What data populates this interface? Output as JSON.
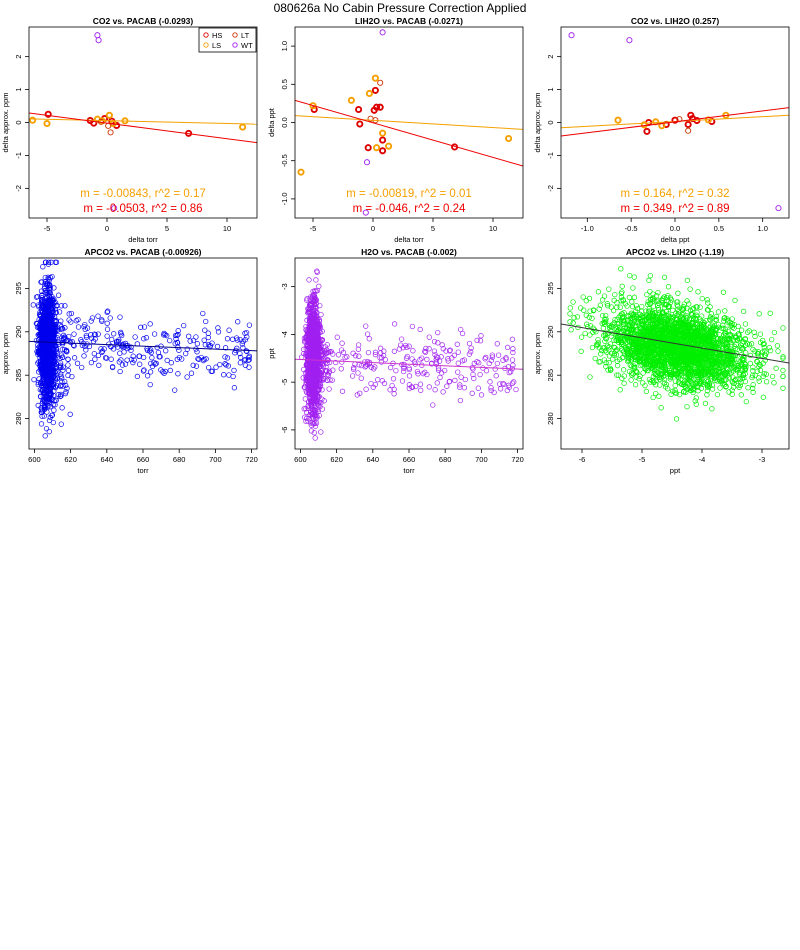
{
  "page_title": "080626a   No Cabin Pressure Correction Applied",
  "colors": {
    "HS": "#dd0000",
    "LS": "#f5a000",
    "LT": "#cc3300",
    "WT": "#a020f0",
    "blue": "#0000ee",
    "purple": "#a020f0",
    "green": "#00ee00",
    "fit_red": "#ee0000",
    "fit_orange": "#f5a000",
    "fit_blue": "#000088",
    "fit_purple": "#cc33cc",
    "fit_black": "#333333"
  },
  "chart_data": [
    {
      "type": "scatter",
      "title": "CO2 vs. PACAB (-0.0293)",
      "xlabel": "delta torr",
      "ylabel": "delta approx. ppm",
      "xlim": [
        -6.5,
        12.5
      ],
      "ylim": [
        -2.9,
        2.9
      ],
      "xticks": [
        -5,
        0,
        5,
        10
      ],
      "yticks": [
        -2,
        -1,
        0,
        1,
        2
      ],
      "legend": {
        "position": "top-right",
        "entries": [
          {
            "label": "HS",
            "color_key": "HS"
          },
          {
            "label": "LT",
            "color_key": "LT"
          },
          {
            "label": "LS",
            "color_key": "LS"
          },
          {
            "label": "WT",
            "color_key": "WT"
          }
        ]
      },
      "series": [
        {
          "name": "HS",
          "color_key": "HS",
          "bold": true,
          "x": [
            -4.9,
            -1.4,
            -1.1,
            -0.2,
            0.4,
            0.8,
            6.8
          ],
          "y": [
            0.25,
            0.06,
            -0.02,
            0.12,
            0.04,
            -0.09,
            -0.33
          ]
        },
        {
          "name": "LS",
          "color_key": "LS",
          "bold": true,
          "x": [
            -6.2,
            -5.0,
            -0.8,
            -0.4,
            0.2,
            0.5,
            1.5,
            11.3
          ],
          "y": [
            0.07,
            -0.03,
            0.1,
            0.05,
            0.22,
            -0.03,
            0.05,
            -0.14
          ]
        },
        {
          "name": "LT",
          "color_key": "LT",
          "bold": false,
          "x": [
            -0.5,
            0.1,
            0.3
          ],
          "y": [
            0.02,
            -0.1,
            -0.3
          ]
        },
        {
          "name": "WT",
          "color_key": "WT",
          "bold": false,
          "x": [
            -0.8,
            -0.7,
            0.6
          ],
          "y": [
            2.65,
            2.5,
            -2.6
          ]
        }
      ],
      "fits": [
        {
          "color_key": "fit_orange",
          "x": [
            -6.5,
            12.5
          ],
          "y": [
            0.11,
            -0.05
          ]
        },
        {
          "color_key": "fit_red",
          "x": [
            -6.5,
            12.5
          ],
          "y": [
            0.29,
            -0.61
          ]
        }
      ],
      "annotations": [
        {
          "text": "m = -0.00843, r^2 = 0.17",
          "color_key": "fit_orange",
          "row": 1
        },
        {
          "text": "m = -0.0503, r^2 = 0.86",
          "color_key": "fit_red",
          "row": 2
        }
      ]
    },
    {
      "type": "scatter",
      "title": "LIH2O vs. PACAB (-0.0271)",
      "xlabel": "delta torr",
      "ylabel": "delta ppt",
      "xlim": [
        -6.5,
        12.5
      ],
      "ylim": [
        -1.25,
        1.25
      ],
      "xticks": [
        -5,
        0,
        5,
        10
      ],
      "yticks": [
        -1.0,
        -0.5,
        0.0,
        0.5,
        1.0
      ],
      "series": [
        {
          "name": "HS",
          "color_key": "HS",
          "bold": true,
          "x": [
            -4.9,
            -1.2,
            -1.1,
            -0.4,
            0.1,
            0.3,
            0.2,
            0.6,
            0.8,
            0.8,
            6.8
          ],
          "y": [
            0.17,
            0.17,
            -0.02,
            -0.33,
            0.16,
            0.2,
            0.42,
            0.2,
            -0.23,
            -0.37,
            -0.32
          ]
        },
        {
          "name": "LS",
          "color_key": "LS",
          "bold": true,
          "x": [
            -6.0,
            -5.0,
            -1.8,
            -0.3,
            0.2,
            0.3,
            0.8,
            1.3,
            11.3
          ],
          "y": [
            -0.65,
            0.22,
            0.29,
            0.38,
            0.58,
            -0.33,
            -0.14,
            -0.31,
            -0.21
          ]
        },
        {
          "name": "LT",
          "color_key": "LT",
          "bold": false,
          "x": [
            0.6,
            -0.2,
            0.2
          ],
          "y": [
            0.52,
            0.05,
            0.03
          ]
        },
        {
          "name": "WT",
          "color_key": "WT",
          "bold": false,
          "x": [
            0.8,
            -0.5,
            -0.6
          ],
          "y": [
            1.18,
            -0.52,
            -1.18
          ]
        }
      ],
      "fits": [
        {
          "color_key": "fit_orange",
          "x": [
            -6.5,
            12.5
          ],
          "y": [
            0.09,
            -0.09
          ]
        },
        {
          "color_key": "fit_red",
          "x": [
            -6.5,
            12.5
          ],
          "y": [
            0.29,
            -0.57
          ]
        }
      ],
      "annotations": [
        {
          "text": "m = -0.00819, r^2 = 0.01",
          "color_key": "fit_orange",
          "row": 1
        },
        {
          "text": "m = -0.046, r^2 = 0.24",
          "color_key": "fit_red",
          "row": 2
        }
      ]
    },
    {
      "type": "scatter",
      "title": "CO2 vs. LIH2O (0.257)",
      "xlabel": "delta ppt",
      "ylabel": "delta approx. ppm",
      "xlim": [
        -1.3,
        1.3
      ],
      "ylim": [
        -2.9,
        2.9
      ],
      "xticks": [
        -1.0,
        -0.5,
        0.0,
        0.5,
        1.0
      ],
      "yticks": [
        -2,
        -1,
        0,
        1,
        2
      ],
      "series": [
        {
          "name": "HS",
          "color_key": "HS",
          "bold": true,
          "x": [
            -0.3,
            -0.32,
            -0.1,
            0.0,
            0.15,
            0.18,
            0.2,
            0.25,
            0.42
          ],
          "y": [
            0.0,
            -0.27,
            -0.06,
            0.07,
            -0.06,
            0.22,
            0.12,
            0.06,
            0.03
          ]
        },
        {
          "name": "LS",
          "color_key": "LS",
          "bold": true,
          "x": [
            -0.65,
            -0.35,
            -0.22,
            -0.15,
            0.38,
            0.58
          ],
          "y": [
            0.07,
            -0.07,
            0.02,
            -0.1,
            0.08,
            0.22
          ]
        },
        {
          "name": "LT",
          "color_key": "LT",
          "bold": false,
          "x": [
            0.15,
            0.05
          ],
          "y": [
            -0.25,
            0.1
          ]
        },
        {
          "name": "WT",
          "color_key": "WT",
          "bold": false,
          "x": [
            -1.18,
            -0.52,
            1.18
          ],
          "y": [
            2.65,
            2.5,
            -2.6
          ]
        }
      ],
      "fits": [
        {
          "color_key": "fit_orange",
          "x": [
            -1.3,
            1.3
          ],
          "y": [
            -0.16,
            0.22
          ]
        },
        {
          "color_key": "fit_red",
          "x": [
            -1.3,
            1.3
          ],
          "y": [
            -0.41,
            0.45
          ]
        }
      ],
      "annotations": [
        {
          "text": "m = 0.164, r^2 = 0.32",
          "color_key": "fit_orange",
          "row": 1
        },
        {
          "text": "m = 0.349, r^2 = 0.89",
          "color_key": "fit_red",
          "row": 2
        }
      ]
    },
    {
      "type": "scatter",
      "title": "APCO2 vs. PACAB (-0.00926)",
      "xlabel": "torr",
      "ylabel": "approx. ppm",
      "xlim": [
        597,
        723
      ],
      "ylim": [
        276.5,
        298.5
      ],
      "xticks": [
        600,
        620,
        640,
        660,
        680,
        700,
        720
      ],
      "yticks": [
        280,
        285,
        290,
        295
      ],
      "generated": {
        "seed": 11,
        "color_key": "blue",
        "clusters": [
          {
            "n": 1400,
            "x_center": 607,
            "x_spread": 2.2,
            "y_center": 288.5,
            "y_spread": 3.2,
            "y_min": 277.5,
            "y_max": 298.0
          },
          {
            "n": 90,
            "x_center": 615,
            "x_spread": 3.0,
            "y_center": 287.0,
            "y_spread": 3.0,
            "y_min": 279.0,
            "y_max": 293.0
          },
          {
            "n": 240,
            "x_min": 620,
            "x_max": 720,
            "y_center": 288.6,
            "y_spread": 1.7,
            "y_slope": -0.01,
            "x_ref": 610
          }
        ]
      },
      "fits": [
        {
          "color_key": "fit_blue",
          "x": [
            597,
            723
          ],
          "y": [
            288.9,
            287.8
          ]
        }
      ]
    },
    {
      "type": "scatter",
      "title": "H2O vs. PACAB (-0.002)",
      "xlabel": "torr",
      "ylabel": "ppt",
      "xlim": [
        597,
        723
      ],
      "ylim": [
        -6.4,
        -2.4
      ],
      "xticks": [
        600,
        620,
        640,
        660,
        680,
        700,
        720
      ],
      "yticks": [
        -6,
        -5,
        -4,
        -3
      ],
      "generated": {
        "seed": 23,
        "color_key": "purple",
        "clusters": [
          {
            "n": 1400,
            "x_center": 607,
            "x_spread": 1.8,
            "y_center": -4.5,
            "y_spread": 0.55,
            "y_min": -6.25,
            "y_max": -2.6
          },
          {
            "n": 60,
            "x_center": 614,
            "x_spread": 2.5,
            "y_center": -4.6,
            "y_spread": 0.35,
            "y_min": -5.5,
            "y_max": -3.8
          },
          {
            "n": 220,
            "x_min": 620,
            "x_max": 720,
            "y_center": -4.55,
            "y_spread": 0.35,
            "y_slope": -0.0015,
            "x_ref": 610
          }
        ]
      },
      "fits": [
        {
          "color_key": "fit_purple",
          "x": [
            597,
            723
          ],
          "y": [
            -4.52,
            -4.73
          ]
        }
      ]
    },
    {
      "type": "scatter",
      "title": "APCO2 vs. LIH2O (-1.19)",
      "xlabel": "ppt",
      "ylabel": "approx. ppm",
      "xlim": [
        -6.35,
        -2.55
      ],
      "ylim": [
        276.5,
        298.5
      ],
      "xticks": [
        -6,
        -5,
        -4,
        -3
      ],
      "yticks": [
        280,
        285,
        290,
        295
      ],
      "generated": {
        "seed": 37,
        "color_key": "green",
        "clusters": [
          {
            "n": 2600,
            "x_center": -4.4,
            "x_spread": 0.62,
            "x_min": -6.2,
            "x_max": -2.65,
            "y_center": 288.3,
            "y_spread": 2.3,
            "y_slope": -1.19,
            "x_ref": -4.4,
            "y_min": 277.5,
            "y_max": 298.0
          }
        ]
      },
      "fits": [
        {
          "color_key": "fit_black",
          "x": [
            -6.35,
            -2.55
          ],
          "y": [
            290.9,
            286.4
          ]
        }
      ]
    }
  ]
}
